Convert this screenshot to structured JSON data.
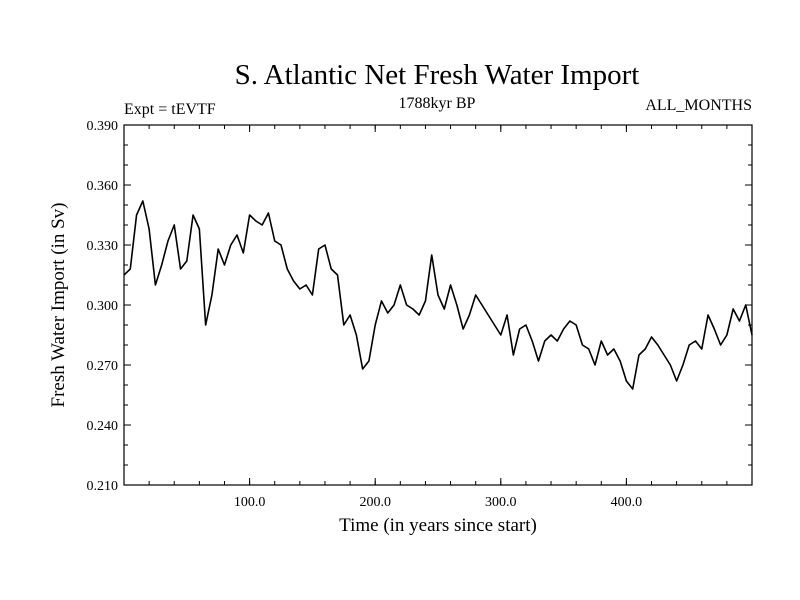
{
  "chart_data": {
    "type": "line",
    "title": "S. Atlantic Net Fresh Water Import",
    "left_subtitle": "Expt = tEVTF",
    "center_subtitle": "1788kyr BP",
    "right_subtitle": "ALL_MONTHS",
    "xlabel": "Time (in years since start)",
    "ylabel": "Fresh Water Import (in Sv)",
    "xlim": [
      0,
      500
    ],
    "ylim": [
      0.21,
      0.39
    ],
    "x_ticks": [
      100,
      200,
      300,
      400
    ],
    "x_tick_labels": [
      "100.0",
      "200.0",
      "300.0",
      "400.0"
    ],
    "y_ticks": [
      0.21,
      0.24,
      0.27,
      0.3,
      0.33,
      0.36,
      0.39
    ],
    "y_tick_labels": [
      "0.210",
      "0.240",
      "0.270",
      "0.300",
      "0.330",
      "0.360",
      "0.390"
    ],
    "grid": false,
    "series": [
      {
        "name": "S. Atlantic net fresh water import",
        "x": [
          0,
          5,
          10,
          15,
          20,
          25,
          30,
          35,
          40,
          45,
          50,
          55,
          60,
          65,
          70,
          75,
          80,
          85,
          90,
          95,
          100,
          105,
          110,
          115,
          120,
          125,
          130,
          135,
          140,
          145,
          150,
          155,
          160,
          165,
          170,
          175,
          180,
          185,
          190,
          195,
          200,
          205,
          210,
          215,
          220,
          225,
          230,
          235,
          240,
          245,
          250,
          255,
          260,
          265,
          270,
          275,
          280,
          285,
          290,
          295,
          300,
          305,
          310,
          315,
          320,
          325,
          330,
          335,
          340,
          345,
          350,
          355,
          360,
          365,
          370,
          375,
          380,
          385,
          390,
          395,
          400,
          405,
          410,
          415,
          420,
          425,
          430,
          435,
          440,
          445,
          450,
          455,
          460,
          465,
          470,
          475,
          480,
          485,
          490,
          495,
          500
        ],
        "values": [
          0.315,
          0.318,
          0.345,
          0.352,
          0.338,
          0.31,
          0.32,
          0.332,
          0.34,
          0.318,
          0.322,
          0.345,
          0.338,
          0.29,
          0.305,
          0.328,
          0.32,
          0.33,
          0.335,
          0.326,
          0.345,
          0.342,
          0.34,
          0.346,
          0.332,
          0.33,
          0.318,
          0.312,
          0.308,
          0.31,
          0.305,
          0.328,
          0.33,
          0.318,
          0.315,
          0.29,
          0.295,
          0.285,
          0.268,
          0.272,
          0.29,
          0.302,
          0.296,
          0.3,
          0.31,
          0.3,
          0.298,
          0.295,
          0.302,
          0.325,
          0.305,
          0.298,
          0.31,
          0.3,
          0.288,
          0.295,
          0.305,
          0.3,
          0.295,
          0.29,
          0.285,
          0.295,
          0.275,
          0.288,
          0.29,
          0.282,
          0.272,
          0.282,
          0.285,
          0.282,
          0.288,
          0.292,
          0.29,
          0.28,
          0.278,
          0.27,
          0.282,
          0.275,
          0.278,
          0.272,
          0.262,
          0.258,
          0.275,
          0.278,
          0.284,
          0.28,
          0.275,
          0.27,
          0.262,
          0.27,
          0.28,
          0.282,
          0.278,
          0.295,
          0.288,
          0.28,
          0.285,
          0.298,
          0.292,
          0.3,
          0.285
        ]
      }
    ]
  }
}
